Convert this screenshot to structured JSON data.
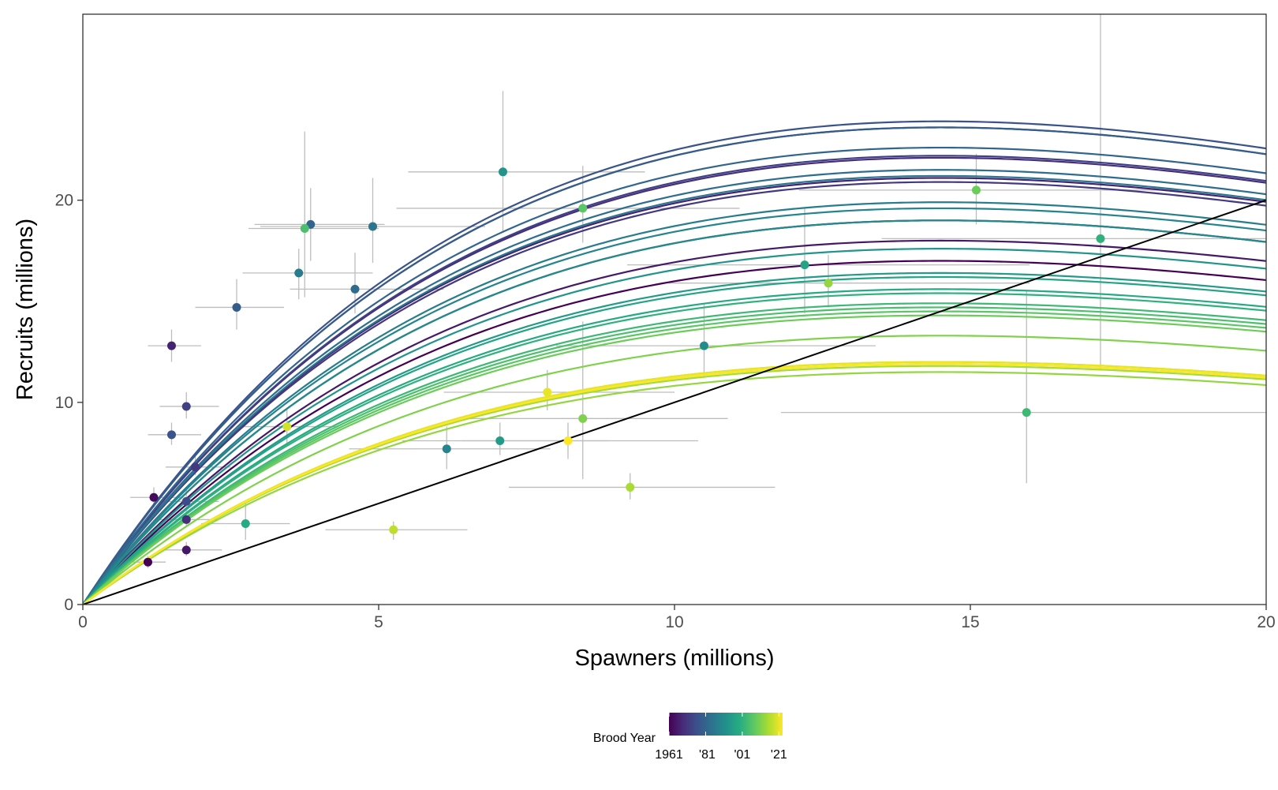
{
  "chart_data": {
    "type": "scatter",
    "xlabel": "Spawners (millions)",
    "ylabel": "Recruits (millions)",
    "xlim": [
      0,
      20
    ],
    "ylim": [
      0,
      29.2
    ],
    "x_ticks": [
      0,
      5,
      10,
      15,
      20
    ],
    "x_tick_labels": [
      "0",
      "5",
      "10",
      "15",
      "20"
    ],
    "y_ticks": [
      0,
      10,
      20
    ],
    "y_tick_labels": [
      "0",
      "10",
      "20"
    ],
    "grid": false,
    "replacement_line": {
      "color": "#000000",
      "from": [
        0,
        0
      ],
      "to": [
        20,
        20
      ]
    },
    "legend": {
      "title": "Brood Year",
      "placement": "bottom",
      "colorscale": "viridis",
      "range": [
        1961,
        2023
      ],
      "ticks": [
        1961,
        1981,
        2001,
        2021
      ],
      "tick_labels": [
        "1961",
        "'81",
        "'01",
        "'21"
      ]
    },
    "curve_model": "Ricker",
    "curves": [
      {
        "year": 1961,
        "peak": 17.0
      },
      {
        "year": 1963,
        "peak": 19.0
      },
      {
        "year": 1965,
        "peak": 18.0
      },
      {
        "year": 1967,
        "peak": 21.1
      },
      {
        "year": 1969,
        "peak": 22.1
      },
      {
        "year": 1971,
        "peak": 20.9
      },
      {
        "year": 1973,
        "peak": 22.2
      },
      {
        "year": 1975,
        "peak": 23.6
      },
      {
        "year": 1977,
        "peak": 23.9
      },
      {
        "year": 1979,
        "peak": 23.6
      },
      {
        "year": 1981,
        "peak": 22.6
      },
      {
        "year": 1983,
        "peak": 21.5
      },
      {
        "year": 1985,
        "peak": 21.2
      },
      {
        "year": 1987,
        "peak": 19.9
      },
      {
        "year": 1989,
        "peak": 19.6
      },
      {
        "year": 1991,
        "peak": 19.0
      },
      {
        "year": 1993,
        "peak": 17.6
      },
      {
        "year": 1995,
        "peak": 16.4
      },
      {
        "year": 1997,
        "peak": 16.2
      },
      {
        "year": 1999,
        "peak": 15.6
      },
      {
        "year": 2001,
        "peak": 15.4
      },
      {
        "year": 2003,
        "peak": 14.9
      },
      {
        "year": 2005,
        "peak": 14.7
      },
      {
        "year": 2007,
        "peak": 14.5
      },
      {
        "year": 2009,
        "peak": 14.3
      },
      {
        "year": 2011,
        "peak": 13.3
      },
      {
        "year": 2013,
        "peak": 11.5
      },
      {
        "year": 2015,
        "peak": 11.8
      },
      {
        "year": 2017,
        "peak": 12.0
      },
      {
        "year": 2019,
        "peak": 11.9
      },
      {
        "year": 2021,
        "peak": 12.0
      },
      {
        "year": 2023,
        "peak": 11.9
      }
    ],
    "points": [
      {
        "year": 1961,
        "x": 1.1,
        "y": 2.1,
        "xlo": 0.85,
        "xhi": 1.4,
        "ylo": 1.8,
        "yhi": 2.4
      },
      {
        "year": 1963,
        "x": 1.2,
        "y": 5.3,
        "xlo": 0.8,
        "xhi": 1.7,
        "ylo": 4.8,
        "yhi": 5.8
      },
      {
        "year": 1965,
        "x": 1.75,
        "y": 2.7,
        "xlo": 1.3,
        "xhi": 2.35,
        "ylo": 2.4,
        "yhi": 3.1
      },
      {
        "year": 1967,
        "x": 1.5,
        "y": 12.8,
        "xlo": 1.1,
        "xhi": 2.0,
        "ylo": 12.0,
        "yhi": 13.6
      },
      {
        "year": 1969,
        "x": 1.75,
        "y": 4.2,
        "xlo": 1.3,
        "xhi": 2.3,
        "ylo": 3.9,
        "yhi": 4.6
      },
      {
        "year": 1971,
        "x": 1.9,
        "y": 6.8,
        "xlo": 1.4,
        "xhi": 2.5,
        "ylo": 6.4,
        "yhi": 7.4
      },
      {
        "year": 1973,
        "x": 1.75,
        "y": 9.8,
        "xlo": 1.3,
        "xhi": 2.3,
        "ylo": 9.2,
        "yhi": 10.5
      },
      {
        "year": 1975,
        "x": 1.75,
        "y": 5.1,
        "xlo": 1.3,
        "xhi": 2.3,
        "ylo": 4.6,
        "yhi": 5.7
      },
      {
        "year": 1977,
        "x": 1.5,
        "y": 8.4,
        "xlo": 1.1,
        "xhi": 2.0,
        "ylo": 7.9,
        "yhi": 9.0
      },
      {
        "year": 1979,
        "x": 2.6,
        "y": 14.7,
        "xlo": 1.9,
        "xhi": 3.4,
        "ylo": 13.6,
        "yhi": 16.1
      },
      {
        "year": 1981,
        "x": 3.85,
        "y": 18.8,
        "xlo": 2.9,
        "xhi": 5.1,
        "ylo": 17.0,
        "yhi": 20.6
      },
      {
        "year": 1983,
        "x": 4.6,
        "y": 15.6,
        "xlo": 3.5,
        "xhi": 6.1,
        "ylo": 14.4,
        "yhi": 17.4
      },
      {
        "year": 1985,
        "x": 4.9,
        "y": 18.7,
        "xlo": 3.0,
        "xhi": 6.8,
        "ylo": 16.9,
        "yhi": 21.1
      },
      {
        "year": 1987,
        "x": 3.65,
        "y": 16.4,
        "xlo": 2.7,
        "xhi": 4.9,
        "ylo": 15.1,
        "yhi": 17.6
      },
      {
        "year": 1989,
        "x": 6.15,
        "y": 7.7,
        "xlo": 4.5,
        "xhi": 7.9,
        "ylo": 6.7,
        "yhi": 8.8
      },
      {
        "year": 1991,
        "x": 10.5,
        "y": 12.8,
        "xlo": 8.0,
        "xhi": 13.4,
        "ylo": 11.2,
        "yhi": 14.9
      },
      {
        "year": 1993,
        "x": 7.1,
        "y": 21.4,
        "xlo": 5.5,
        "xhi": 9.5,
        "ylo": 18.4,
        "yhi": 25.4
      },
      {
        "year": 1995,
        "x": 7.05,
        "y": 8.1,
        "xlo": 5.4,
        "xhi": 8.9,
        "ylo": 7.4,
        "yhi": 9.0
      },
      {
        "year": 1997,
        "x": 12.2,
        "y": 16.8,
        "xlo": 9.2,
        "xhi": 16.0,
        "ylo": 14.4,
        "yhi": 19.6
      },
      {
        "year": 1999,
        "x": 2.75,
        "y": 4.0,
        "xlo": 2.0,
        "xhi": 3.5,
        "ylo": 3.2,
        "yhi": 5.0
      },
      {
        "year": 2001,
        "x": 17.2,
        "y": 18.1,
        "xlo": 13.5,
        "xhi": 21.5,
        "ylo": 11.6,
        "yhi": 29.5
      },
      {
        "year": 2003,
        "x": 15.95,
        "y": 9.5,
        "xlo": 11.8,
        "xhi": 20.8,
        "ylo": 6.0,
        "yhi": 15.5
      },
      {
        "year": 2005,
        "x": 3.75,
        "y": 18.6,
        "xlo": 2.8,
        "xhi": 5.0,
        "ylo": 15.2,
        "yhi": 23.4
      },
      {
        "year": 2007,
        "x": 8.45,
        "y": 19.6,
        "xlo": 5.3,
        "xhi": 11.1,
        "ylo": 17.9,
        "yhi": 21.7
      },
      {
        "year": 2009,
        "x": 15.1,
        "y": 20.5,
        "xlo": 12.1,
        "xhi": 18.6,
        "ylo": 18.8,
        "yhi": 22.3
      },
      {
        "year": 2011,
        "x": 8.45,
        "y": 9.2,
        "xlo": 6.4,
        "xhi": 10.9,
        "ylo": 6.2,
        "yhi": 14.0
      },
      {
        "year": 2013,
        "x": 12.6,
        "y": 15.9,
        "xlo": 9.9,
        "xhi": 16.0,
        "ylo": 14.7,
        "yhi": 17.3
      },
      {
        "year": 2015,
        "x": 9.25,
        "y": 5.8,
        "xlo": 7.2,
        "xhi": 11.7,
        "ylo": 5.2,
        "yhi": 6.5
      },
      {
        "year": 2017,
        "x": 5.25,
        "y": 3.7,
        "xlo": 4.1,
        "xhi": 6.5,
        "ylo": 3.2,
        "yhi": 4.1
      },
      {
        "year": 2019,
        "x": 3.45,
        "y": 8.8,
        "xlo": 2.7,
        "xhi": 4.3,
        "ylo": 7.9,
        "yhi": 9.7
      },
      {
        "year": 2021,
        "x": 7.85,
        "y": 10.5,
        "xlo": 6.1,
        "xhi": 10.0,
        "ylo": 9.6,
        "yhi": 11.6
      },
      {
        "year": 2023,
        "x": 8.2,
        "y": 8.1,
        "xlo": 6.4,
        "xhi": 10.4,
        "ylo": 7.2,
        "yhi": 9.0
      }
    ]
  }
}
